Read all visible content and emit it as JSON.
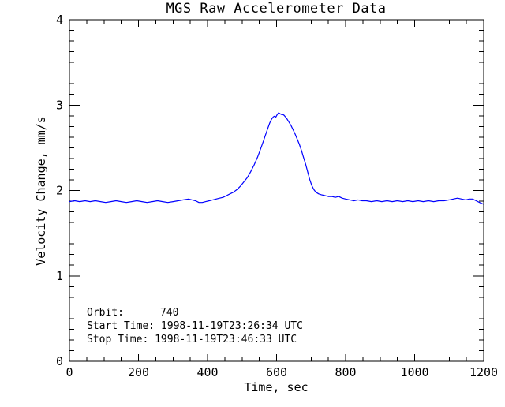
{
  "window": {
    "background": "#ffffff"
  },
  "annotations": {
    "orbit_label": "Orbit:",
    "orbit_value": "740",
    "start_time": "Start Time: 1998-11-19T23:26:34 UTC",
    "stop_time": "Stop Time: 1998-11-19T23:46:33 UTC"
  },
  "chart_data": {
    "type": "line",
    "title": "MGS Raw Accelerometer Data",
    "xlabel": "Time, sec",
    "ylabel": "Velocity Change, mm/s",
    "xlim": [
      0,
      1200
    ],
    "ylim": [
      0,
      4
    ],
    "x_major_ticks": [
      0,
      200,
      400,
      600,
      800,
      1000,
      1200
    ],
    "x_minor_interval": 50,
    "y_major_ticks": [
      0,
      1,
      2,
      3,
      4
    ],
    "y_minor_interval": 0.125,
    "grid": false,
    "legend": "none",
    "axis_color": "#000000",
    "line_color": "#0000ff",
    "series": [
      {
        "name": "velocity_change_mm_s",
        "points": [
          [
            0,
            1.87
          ],
          [
            15,
            1.88
          ],
          [
            30,
            1.87
          ],
          [
            45,
            1.88
          ],
          [
            60,
            1.87
          ],
          [
            75,
            1.88
          ],
          [
            90,
            1.87
          ],
          [
            105,
            1.86
          ],
          [
            120,
            1.87
          ],
          [
            135,
            1.88
          ],
          [
            150,
            1.87
          ],
          [
            165,
            1.86
          ],
          [
            180,
            1.87
          ],
          [
            195,
            1.88
          ],
          [
            210,
            1.87
          ],
          [
            225,
            1.86
          ],
          [
            240,
            1.87
          ],
          [
            255,
            1.88
          ],
          [
            270,
            1.87
          ],
          [
            285,
            1.86
          ],
          [
            300,
            1.87
          ],
          [
            315,
            1.88
          ],
          [
            330,
            1.89
          ],
          [
            345,
            1.9
          ],
          [
            355,
            1.89
          ],
          [
            365,
            1.88
          ],
          [
            375,
            1.86
          ],
          [
            385,
            1.86
          ],
          [
            395,
            1.87
          ],
          [
            405,
            1.88
          ],
          [
            415,
            1.89
          ],
          [
            425,
            1.9
          ],
          [
            435,
            1.91
          ],
          [
            445,
            1.92
          ],
          [
            455,
            1.94
          ],
          [
            465,
            1.96
          ],
          [
            475,
            1.98
          ],
          [
            485,
            2.01
          ],
          [
            495,
            2.05
          ],
          [
            505,
            2.1
          ],
          [
            515,
            2.15
          ],
          [
            525,
            2.22
          ],
          [
            535,
            2.3
          ],
          [
            545,
            2.39
          ],
          [
            555,
            2.5
          ],
          [
            562,
            2.58
          ],
          [
            568,
            2.65
          ],
          [
            574,
            2.72
          ],
          [
            580,
            2.79
          ],
          [
            585,
            2.83
          ],
          [
            590,
            2.86
          ],
          [
            594,
            2.87
          ],
          [
            598,
            2.86
          ],
          [
            602,
            2.89
          ],
          [
            606,
            2.91
          ],
          [
            610,
            2.9
          ],
          [
            614,
            2.89
          ],
          [
            618,
            2.89
          ],
          [
            622,
            2.88
          ],
          [
            626,
            2.86
          ],
          [
            630,
            2.84
          ],
          [
            636,
            2.8
          ],
          [
            642,
            2.76
          ],
          [
            648,
            2.71
          ],
          [
            654,
            2.66
          ],
          [
            660,
            2.6
          ],
          [
            666,
            2.54
          ],
          [
            672,
            2.47
          ],
          [
            678,
            2.39
          ],
          [
            684,
            2.31
          ],
          [
            690,
            2.22
          ],
          [
            696,
            2.13
          ],
          [
            702,
            2.06
          ],
          [
            708,
            2.01
          ],
          [
            714,
            1.98
          ],
          [
            722,
            1.96
          ],
          [
            730,
            1.95
          ],
          [
            740,
            1.94
          ],
          [
            750,
            1.93
          ],
          [
            760,
            1.93
          ],
          [
            770,
            1.92
          ],
          [
            780,
            1.93
          ],
          [
            790,
            1.91
          ],
          [
            800,
            1.9
          ],
          [
            812,
            1.89
          ],
          [
            824,
            1.88
          ],
          [
            836,
            1.89
          ],
          [
            848,
            1.88
          ],
          [
            860,
            1.88
          ],
          [
            875,
            1.87
          ],
          [
            890,
            1.88
          ],
          [
            905,
            1.87
          ],
          [
            920,
            1.88
          ],
          [
            935,
            1.87
          ],
          [
            950,
            1.88
          ],
          [
            965,
            1.87
          ],
          [
            980,
            1.88
          ],
          [
            995,
            1.87
          ],
          [
            1010,
            1.88
          ],
          [
            1025,
            1.87
          ],
          [
            1040,
            1.88
          ],
          [
            1055,
            1.87
          ],
          [
            1070,
            1.88
          ],
          [
            1085,
            1.88
          ],
          [
            1100,
            1.89
          ],
          [
            1112,
            1.9
          ],
          [
            1124,
            1.91
          ],
          [
            1136,
            1.9
          ],
          [
            1148,
            1.89
          ],
          [
            1158,
            1.9
          ],
          [
            1168,
            1.9
          ],
          [
            1178,
            1.88
          ],
          [
            1188,
            1.86
          ],
          [
            1199,
            1.84
          ]
        ]
      }
    ]
  }
}
